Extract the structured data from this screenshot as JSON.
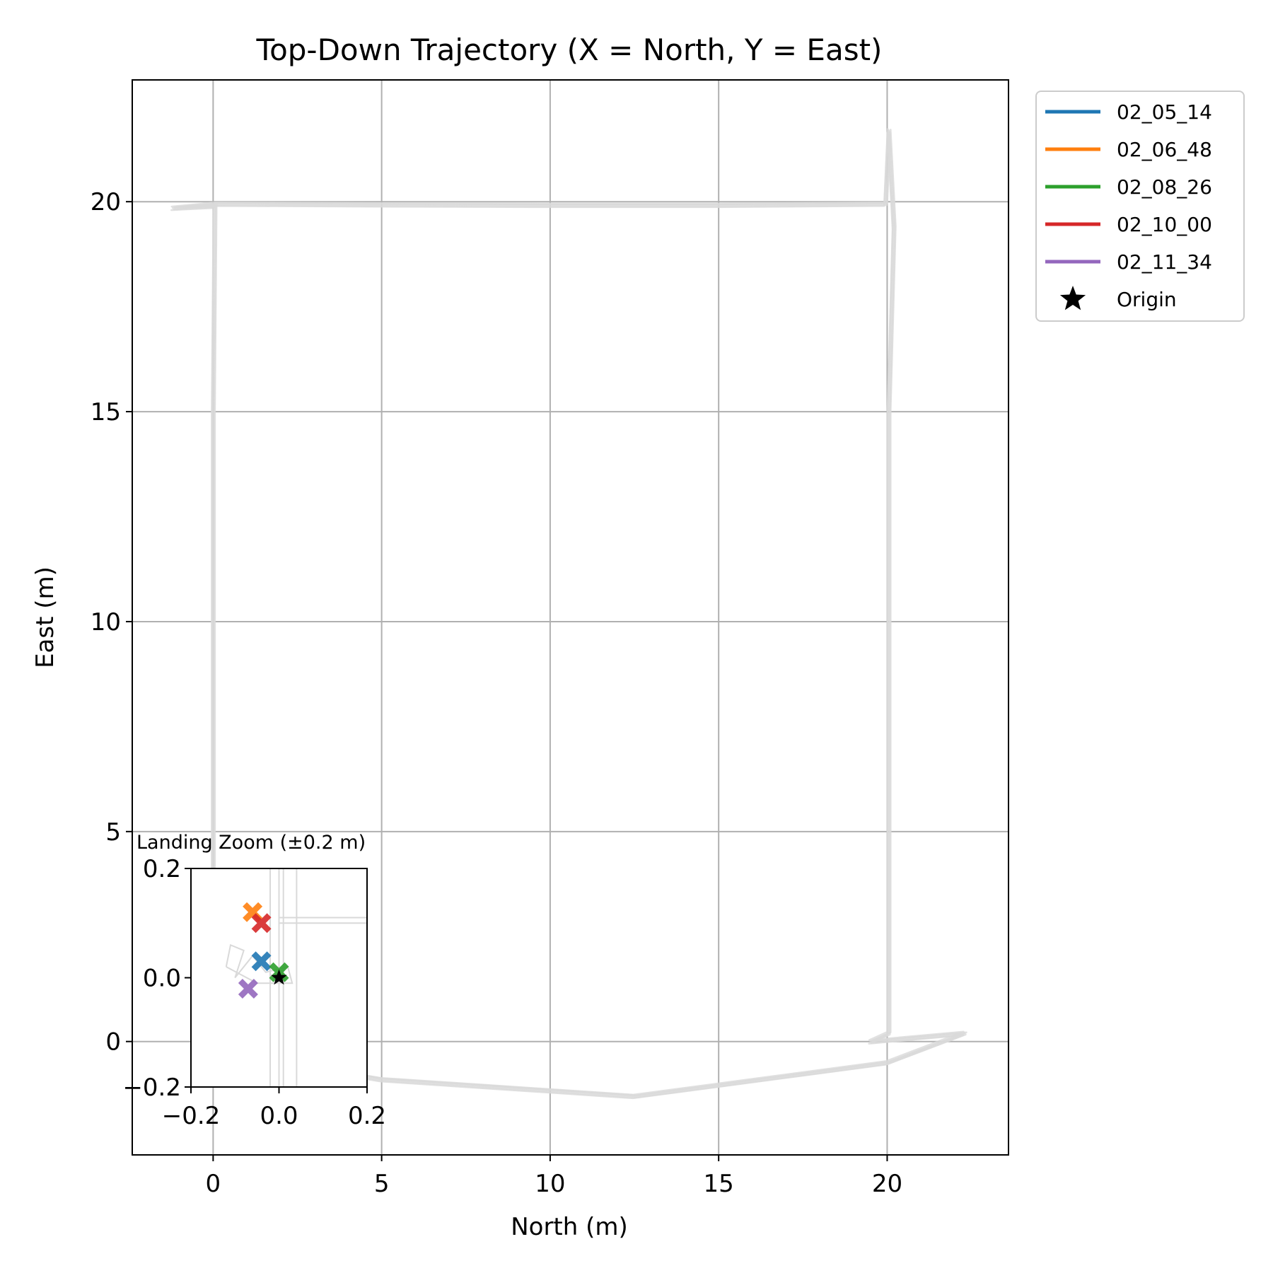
{
  "chart_data": [
    {
      "type": "line",
      "title": "Top-Down Trajectory (X = North, Y = East)",
      "xlabel": "North (m)",
      "ylabel": "East (m)",
      "xlim": [
        -2.4,
        23.6
      ],
      "ylim": [
        -2.7,
        22.9
      ],
      "xticks": [
        0,
        5,
        10,
        15,
        20
      ],
      "yticks": [
        0,
        5,
        10,
        15,
        20
      ],
      "grid": true,
      "legend_position": "upper right, outside plot",
      "series": [
        {
          "name": "02_05_14",
          "color": "#1f77b4"
        },
        {
          "name": "02_06_48",
          "color": "#ff7f0e"
        },
        {
          "name": "02_08_26",
          "color": "#2ca02c"
        },
        {
          "name": "02_10_00",
          "color": "#d62728"
        },
        {
          "name": "02_11_34",
          "color": "#9467bd"
        }
      ],
      "origin_marker": {
        "label": "Origin",
        "x": 0,
        "y": 0,
        "color": "#000000"
      },
      "trajectory_color": "#d9d9d9",
      "trajectory_path": [
        {
          "x": 0,
          "y": 0
        },
        {
          "x": 0,
          "y": 5
        },
        {
          "x": 0,
          "y": 10
        },
        {
          "x": 0,
          "y": 15
        },
        {
          "x": 0.05,
          "y": 19.9
        },
        {
          "x": -1.2,
          "y": 19.85
        },
        {
          "x": 0.1,
          "y": 19.95
        },
        {
          "x": 5,
          "y": 19.93
        },
        {
          "x": 10,
          "y": 19.92
        },
        {
          "x": 15,
          "y": 19.92
        },
        {
          "x": 19.95,
          "y": 19.95
        },
        {
          "x": 20.05,
          "y": 21.7
        },
        {
          "x": 20.2,
          "y": 19.4
        },
        {
          "x": 20.05,
          "y": 15
        },
        {
          "x": 20.05,
          "y": 10
        },
        {
          "x": 20.05,
          "y": 5
        },
        {
          "x": 20.05,
          "y": 0.2
        },
        {
          "x": 19.5,
          "y": 0.0
        },
        {
          "x": 22.3,
          "y": 0.2
        },
        {
          "x": 20.0,
          "y": -0.5
        },
        {
          "x": 12.5,
          "y": -1.3
        },
        {
          "x": 5,
          "y": -0.9
        },
        {
          "x": 0.5,
          "y": -0.3
        },
        {
          "x": 0,
          "y": 0
        }
      ]
    },
    {
      "type": "scatter",
      "title": "Landing Zoom (±0.2 m)",
      "xlim": [
        -0.2,
        0.2
      ],
      "ylim": [
        -0.2,
        0.2
      ],
      "xticks": [
        "−0.2",
        "0.0",
        "0.2"
      ],
      "yticks": [
        "−0.2",
        "0.0",
        "0.2"
      ],
      "tick_values": [
        -0.2,
        0.0,
        0.2
      ],
      "landing_points": [
        {
          "series": "02_05_14",
          "x": -0.04,
          "y": 0.03,
          "color": "#1f77b4"
        },
        {
          "series": "02_06_48",
          "x": -0.06,
          "y": 0.12,
          "color": "#ff7f0e"
        },
        {
          "series": "02_08_26",
          "x": 0.0,
          "y": 0.01,
          "color": "#2ca02c"
        },
        {
          "series": "02_10_00",
          "x": -0.04,
          "y": 0.1,
          "color": "#d62728"
        },
        {
          "series": "02_11_34",
          "x": -0.07,
          "y": -0.02,
          "color": "#9467bd"
        }
      ],
      "origin_marker": {
        "x": 0,
        "y": 0
      }
    }
  ]
}
